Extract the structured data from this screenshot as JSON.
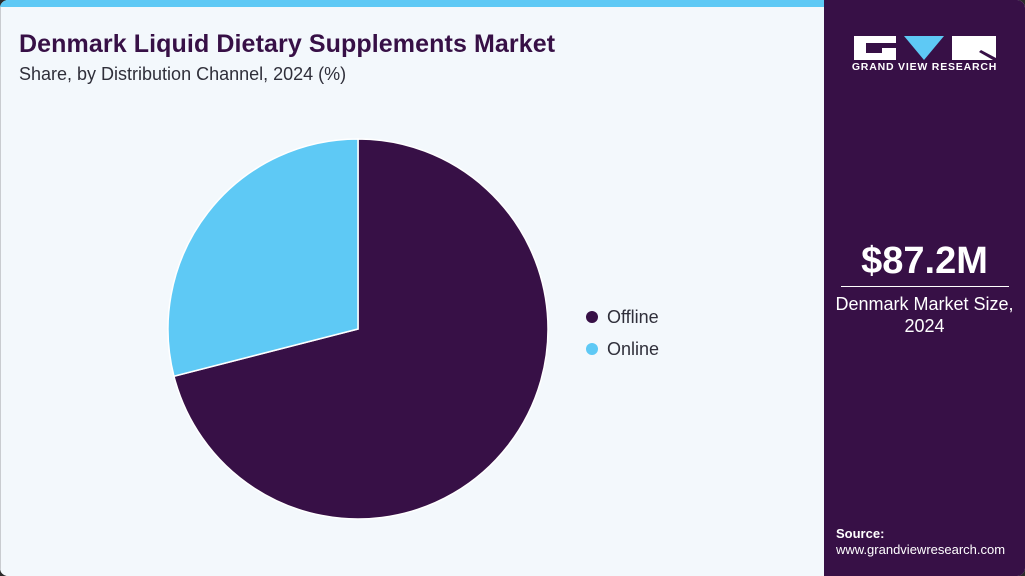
{
  "header": {
    "title": "Denmark Liquid Dietary Supplements Market",
    "subtitle": "Share, by Distribution Channel, 2024 (%)"
  },
  "legend": {
    "items": [
      {
        "label": "Offline",
        "color": "#371046"
      },
      {
        "label": "Online",
        "color": "#5ec9f5"
      }
    ]
  },
  "sidebar": {
    "brand": "GRAND VIEW RESEARCH",
    "stat_value": "$87.2M",
    "stat_label_line1": "Denmark Market Size,",
    "stat_label_line2": "2024",
    "source_label": "Source:",
    "source_url": "www.grandviewresearch.com"
  },
  "colors": {
    "primary": "#371046",
    "accent": "#5ec9f5",
    "background": "#f3f8fc"
  },
  "chart_data": {
    "type": "pie",
    "title": "Denmark Liquid Dietary Supplements Market",
    "subtitle": "Share, by Distribution Channel, 2024 (%)",
    "categories": [
      "Offline",
      "Online"
    ],
    "values": [
      71,
      29
    ],
    "colors": [
      "#371046",
      "#5ec9f5"
    ],
    "start_angle_deg": 0,
    "direction": "clockwise",
    "legend_position": "right",
    "data_labels": false
  }
}
